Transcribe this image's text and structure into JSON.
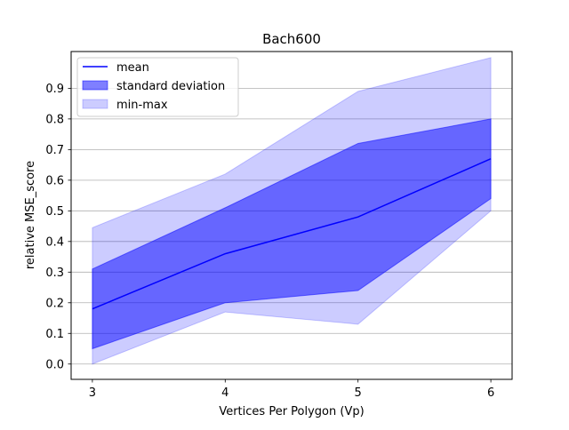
{
  "chart_data": {
    "type": "area",
    "title": "Bach600",
    "xlabel": "Vertices Per Polygon (Vp)",
    "ylabel": "relative MSE_score",
    "x": [
      3,
      4,
      5,
      6
    ],
    "xlim": [
      2.84,
      6.16
    ],
    "ylim": [
      -0.05,
      1.02
    ],
    "x_ticks": [
      "3",
      "4",
      "5",
      "6"
    ],
    "y_ticks": [
      "0.0",
      "0.1",
      "0.2",
      "0.3",
      "0.4",
      "0.5",
      "0.6",
      "0.7",
      "0.8",
      "0.9"
    ],
    "grid": "horizontal",
    "legend_position": "upper-left",
    "series": [
      {
        "name": "mean",
        "kind": "line",
        "color": "#0000ff",
        "values": [
          0.18,
          0.36,
          0.48,
          0.67
        ]
      },
      {
        "name": "standard deviation",
        "kind": "band",
        "color": "#0000ff",
        "opacity": 0.5,
        "lower": [
          0.05,
          0.2,
          0.24,
          0.54
        ],
        "upper": [
          0.31,
          0.51,
          0.72,
          0.8
        ]
      },
      {
        "name": "min-max",
        "kind": "band",
        "color": "#0000ff",
        "opacity": 0.2,
        "lower": [
          0.0,
          0.17,
          0.13,
          0.5
        ],
        "upper": [
          0.445,
          0.62,
          0.89,
          1.0
        ]
      }
    ]
  }
}
